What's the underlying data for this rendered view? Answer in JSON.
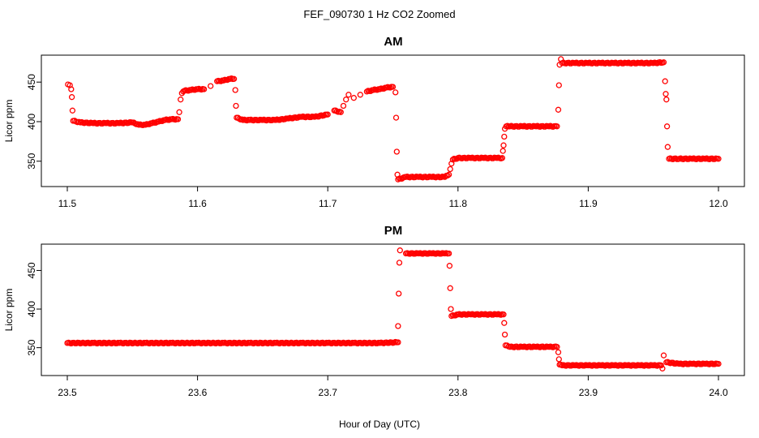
{
  "figure": {
    "title": "FEF_090730  1 Hz CO2 Zoomed",
    "xlabel": "Hour of Day (UTC)"
  },
  "colors": {
    "points": "#ff0000",
    "axes": "#000000",
    "background": "#ffffff"
  },
  "chart_data": [
    {
      "type": "scatter",
      "title": "AM",
      "xlabel": "Hour of Day (UTC)",
      "ylabel": "Licor ppm",
      "xlim": [
        11.5,
        12.0
      ],
      "ylim": [
        320,
        482
      ],
      "x_ticks": [
        "11.5",
        "11.6",
        "11.7",
        "11.8",
        "11.9",
        "12.0"
      ],
      "y_ticks": [
        "350",
        "400",
        "450"
      ],
      "grid": false,
      "series": [
        {
          "marker": "open-circle",
          "points": [
            [
              11.5005,
              447
            ],
            [
              11.502,
              446
            ],
            [
              11.503,
              441
            ],
            [
              11.5035,
              431
            ],
            [
              11.504,
              414
            ],
            [
              11.5045,
              401
            ],
            [
              11.51,
              399
            ],
            [
              11.52,
              398
            ],
            [
              11.53,
              398
            ],
            [
              11.54,
              398
            ],
            [
              11.55,
              399
            ],
            [
              11.555,
              396
            ],
            [
              11.56,
              396
            ],
            [
              11.565,
              398
            ],
            [
              11.57,
              400
            ],
            [
              11.575,
              402
            ],
            [
              11.58,
              403
            ],
            [
              11.585,
              403
            ],
            [
              11.586,
              412
            ],
            [
              11.587,
              428
            ],
            [
              11.588,
              436
            ],
            [
              11.59,
              439
            ],
            [
              11.595,
              440
            ],
            [
              11.6,
              441
            ],
            [
              11.605,
              441
            ],
            [
              11.61,
              445
            ],
            [
              11.615,
              451
            ],
            [
              11.62,
              452
            ],
            [
              11.625,
              454
            ],
            [
              11.628,
              454
            ],
            [
              11.629,
              440
            ],
            [
              11.6295,
              420
            ],
            [
              11.63,
              405
            ],
            [
              11.635,
              402
            ],
            [
              11.64,
              402
            ],
            [
              11.65,
              402
            ],
            [
              11.66,
              402
            ],
            [
              11.67,
              404
            ],
            [
              11.68,
              406
            ],
            [
              11.69,
              406
            ],
            [
              11.7,
              409
            ],
            [
              11.705,
              414
            ],
            [
              11.71,
              412
            ],
            [
              11.712,
              420
            ],
            [
              11.714,
              428
            ],
            [
              11.716,
              434
            ],
            [
              11.72,
              430
            ],
            [
              11.725,
              434
            ],
            [
              11.73,
              438
            ],
            [
              11.735,
              440
            ],
            [
              11.74,
              441
            ],
            [
              11.745,
              443
            ],
            [
              11.75,
              444
            ],
            [
              11.752,
              437
            ],
            [
              11.7525,
              405
            ],
            [
              11.753,
              362
            ],
            [
              11.7535,
              333
            ],
            [
              11.754,
              327
            ],
            [
              11.76,
              330
            ],
            [
              11.77,
              330
            ],
            [
              11.78,
              330
            ],
            [
              11.79,
              330
            ],
            [
              11.793,
              333
            ],
            [
              11.794,
              340
            ],
            [
              11.795,
              347
            ],
            [
              11.796,
              352
            ],
            [
              11.8,
              354
            ],
            [
              11.81,
              354
            ],
            [
              11.82,
              354
            ],
            [
              11.83,
              354
            ],
            [
              11.834,
              354
            ],
            [
              11.8345,
              363
            ],
            [
              11.835,
              370
            ],
            [
              11.8355,
              381
            ],
            [
              11.836,
              391
            ],
            [
              11.837,
              394
            ],
            [
              11.84,
              394
            ],
            [
              11.85,
              394
            ],
            [
              11.86,
              394
            ],
            [
              11.87,
              394
            ],
            [
              11.876,
              394
            ],
            [
              11.877,
              415
            ],
            [
              11.8775,
              446
            ],
            [
              11.878,
              472
            ],
            [
              11.879,
              479
            ],
            [
              11.88,
              474
            ],
            [
              11.89,
              474
            ],
            [
              11.9,
              474
            ],
            [
              11.91,
              474
            ],
            [
              11.92,
              474
            ],
            [
              11.93,
              474
            ],
            [
              11.94,
              474
            ],
            [
              11.95,
              474
            ],
            [
              11.958,
              475
            ],
            [
              11.959,
              451
            ],
            [
              11.9595,
              435
            ],
            [
              11.96,
              428
            ],
            [
              11.9605,
              394
            ],
            [
              11.961,
              368
            ],
            [
              11.962,
              353
            ],
            [
              11.97,
              353
            ],
            [
              11.98,
              353
            ],
            [
              11.99,
              353
            ],
            [
              12.0,
              353
            ]
          ]
        }
      ]
    },
    {
      "type": "scatter",
      "title": "PM",
      "xlabel": "Hour of Day (UTC)",
      "ylabel": "Licor ppm",
      "xlim": [
        23.5,
        24.0
      ],
      "ylim": [
        316,
        482
      ],
      "x_ticks": [
        "23.5",
        "23.6",
        "23.7",
        "23.8",
        "23.9",
        "24.0"
      ],
      "y_ticks": [
        "350",
        "400",
        "450"
      ],
      "grid": false,
      "series": [
        {
          "marker": "open-circle",
          "points": [
            [
              23.5,
              356
            ],
            [
              23.52,
              356
            ],
            [
              23.54,
              356
            ],
            [
              23.56,
              356
            ],
            [
              23.58,
              356
            ],
            [
              23.6,
              356
            ],
            [
              23.62,
              356
            ],
            [
              23.64,
              356
            ],
            [
              23.66,
              356
            ],
            [
              23.68,
              356
            ],
            [
              23.7,
              356
            ],
            [
              23.72,
              356
            ],
            [
              23.74,
              356
            ],
            [
              23.754,
              357
            ],
            [
              23.754,
              378
            ],
            [
              23.7545,
              420
            ],
            [
              23.755,
              460
            ],
            [
              23.7555,
              476
            ],
            [
              23.76,
              472
            ],
            [
              23.77,
              472
            ],
            [
              23.78,
              472
            ],
            [
              23.79,
              472
            ],
            [
              23.793,
              472
            ],
            [
              23.7935,
              456
            ],
            [
              23.794,
              427
            ],
            [
              23.7945,
              400
            ],
            [
              23.795,
              391
            ],
            [
              23.8,
              393
            ],
            [
              23.81,
              393
            ],
            [
              23.82,
              393
            ],
            [
              23.83,
              393
            ],
            [
              23.835,
              393
            ],
            [
              23.8355,
              382
            ],
            [
              23.836,
              367
            ],
            [
              23.8365,
              353
            ],
            [
              23.84,
              351
            ],
            [
              23.85,
              351
            ],
            [
              23.86,
              351
            ],
            [
              23.87,
              351
            ],
            [
              23.876,
              351
            ],
            [
              23.877,
              344
            ],
            [
              23.8775,
              335
            ],
            [
              23.878,
              328
            ],
            [
              23.88,
              327
            ],
            [
              23.89,
              327
            ],
            [
              23.9,
              327
            ],
            [
              23.91,
              327
            ],
            [
              23.92,
              327
            ],
            [
              23.93,
              327
            ],
            [
              23.94,
              327
            ],
            [
              23.95,
              327
            ],
            [
              23.956,
              327
            ],
            [
              23.957,
              323
            ],
            [
              23.958,
              340
            ],
            [
              23.96,
              331
            ],
            [
              23.97,
              329
            ],
            [
              23.98,
              329
            ],
            [
              23.99,
              329
            ],
            [
              24.0,
              329
            ]
          ]
        }
      ]
    }
  ]
}
